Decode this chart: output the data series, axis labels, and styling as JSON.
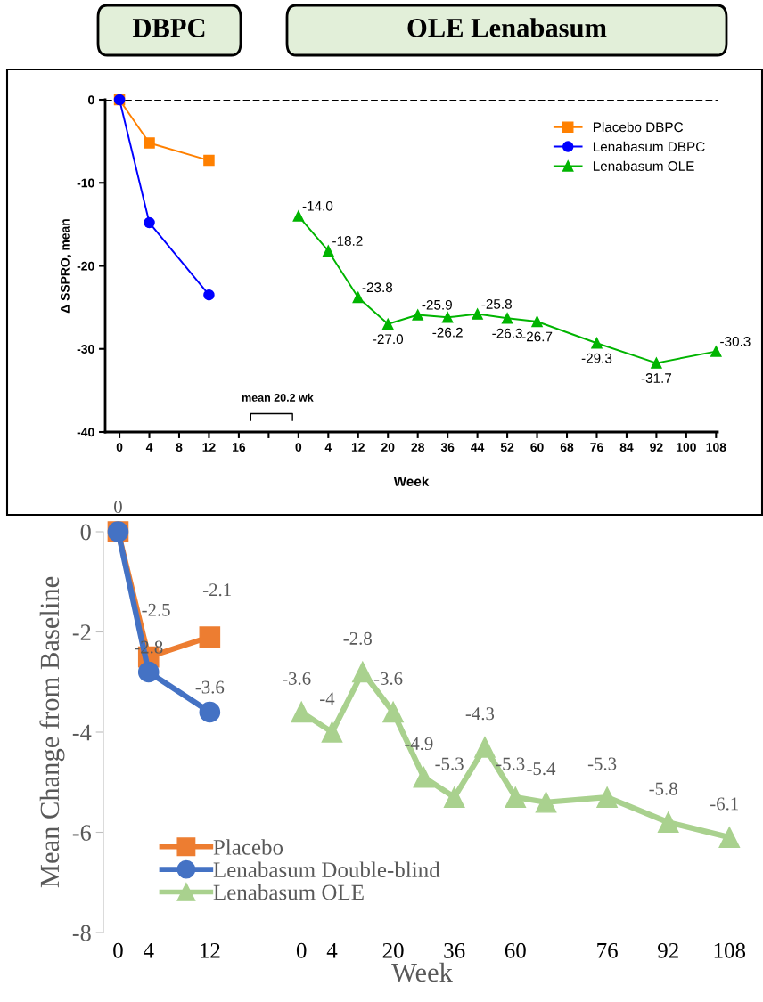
{
  "chart_data": [
    {
      "type": "line",
      "title": null,
      "ylabel": "Δ SSPRO, mean",
      "xlabel": "Week",
      "annotations": [
        "DBPC",
        "OLE Lenabasum",
        "mean 20.2 wk"
      ],
      "categories": [
        "0",
        "4",
        "8",
        "12",
        "16",
        null,
        "0",
        "4",
        "12",
        "20",
        "28",
        "36",
        "44",
        "52",
        "60",
        "68",
        "76",
        "84",
        "92",
        "100",
        "108"
      ],
      "series": [
        {
          "name": "Placebo DBPC",
          "color": "#ff8000",
          "marker": "square",
          "values": [
            0,
            -5.2,
            null,
            -7.3,
            null,
            null,
            null,
            null,
            null,
            null,
            null,
            null,
            null,
            null,
            null,
            null,
            null,
            null,
            null,
            null,
            null
          ]
        },
        {
          "name": "Lenabasum DBPC",
          "color": "#0000ff",
          "marker": "circle",
          "values": [
            0,
            -14.8,
            null,
            -23.5,
            null,
            null,
            null,
            null,
            null,
            null,
            null,
            null,
            null,
            null,
            null,
            null,
            null,
            null,
            null,
            null,
            null
          ]
        },
        {
          "name": "Lenabasum OLE",
          "color": "#00b400",
          "marker": "triangle",
          "values": [
            null,
            null,
            null,
            null,
            null,
            null,
            -14.0,
            -18.2,
            -23.8,
            -27.0,
            -25.9,
            -26.2,
            -25.8,
            -26.3,
            -26.7,
            null,
            -29.3,
            null,
            -31.7,
            null,
            -30.3
          ],
          "value_labels": [
            null,
            null,
            null,
            null,
            null,
            null,
            "-14.0",
            "-18.2",
            "-23.8",
            "-27.0",
            "-25.9",
            "-26.2",
            "-25.8",
            "-26.3",
            "-26.7",
            null,
            "-29.3",
            null,
            "-31.7",
            null,
            "-30.3"
          ]
        }
      ],
      "ylim": [
        -40,
        0
      ],
      "yticks": [
        0,
        -10,
        -20,
        -30,
        -40
      ],
      "ref_lines": [
        {
          "axis": "y",
          "value": 0,
          "color": "#000000",
          "line_style": "dashed"
        }
      ],
      "legend": "top right",
      "grid": false
    },
    {
      "type": "line",
      "ylabel": "Mean Change from Baseline",
      "xlabel": "Week",
      "categories": [
        "0",
        "4",
        null,
        "12",
        null,
        null,
        "0",
        "4",
        null,
        "20",
        null,
        "36",
        null,
        "60",
        null,
        null,
        "76",
        null,
        "92",
        null,
        "108"
      ],
      "series": [
        {
          "name": "Placebo",
          "color": "#ed7d31",
          "marker": "square",
          "values": [
            0,
            -2.5,
            null,
            -2.1,
            null,
            null,
            null,
            null,
            null,
            null,
            null,
            null,
            null,
            null,
            null,
            null,
            null,
            null,
            null,
            null,
            null
          ],
          "value_labels": [
            null,
            "-2.5",
            null,
            "-2.1",
            null,
            null,
            null,
            null,
            null,
            null,
            null,
            null,
            null,
            null,
            null,
            null,
            null,
            null,
            null,
            null,
            null
          ]
        },
        {
          "name": "Lenabasum Double-blind",
          "color": "#4472c4",
          "marker": "circle",
          "values": [
            0,
            -2.8,
            null,
            -3.6,
            null,
            null,
            null,
            null,
            null,
            null,
            null,
            null,
            null,
            null,
            null,
            null,
            null,
            null,
            null,
            null,
            null
          ],
          "value_labels": [
            "0",
            "-2.8",
            null,
            "-3.6",
            null,
            null,
            null,
            null,
            null,
            null,
            null,
            null,
            null,
            null,
            null,
            null,
            null,
            null,
            null,
            null,
            null
          ]
        },
        {
          "name": "Lenabasum OLE",
          "color": "#a9d18e",
          "marker": "triangle",
          "values": [
            null,
            null,
            null,
            null,
            null,
            null,
            -3.6,
            -4,
            -2.8,
            -3.6,
            -4.9,
            -5.3,
            -4.3,
            -5.3,
            -5.4,
            null,
            -5.3,
            null,
            -5.8,
            null,
            -6.1
          ],
          "value_labels": [
            null,
            null,
            null,
            null,
            null,
            null,
            "-3.6",
            "-4",
            "-2.8",
            "-3.6",
            "-4.9",
            "-5.3",
            "-4.3",
            "-5.3",
            "-5.4",
            null,
            "-5.3",
            null,
            "-5.8",
            null,
            "-6.1"
          ]
        }
      ],
      "ylim": [
        -8,
        0
      ],
      "yticks": [
        0,
        -2,
        -4,
        -6,
        -8
      ],
      "legend": "bottom left",
      "grid": false
    }
  ]
}
